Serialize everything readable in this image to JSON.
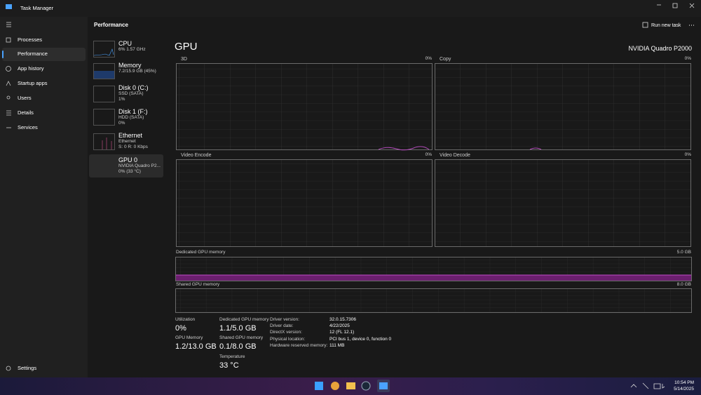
{
  "window": {
    "title": "Task Manager"
  },
  "header": {
    "title": "Performance",
    "action": "Run new task"
  },
  "nav": {
    "items": [
      "Processes",
      "Performance",
      "App history",
      "Startup apps",
      "Users",
      "Details",
      "Services"
    ],
    "settings": "Settings"
  },
  "devices": [
    {
      "name": "CPU",
      "details": [
        "6%  1.57 GHz"
      ]
    },
    {
      "name": "Memory",
      "details": [
        "7.2/15.9 GB (45%)"
      ]
    },
    {
      "name": "Disk 0 (C:)",
      "details": [
        "SSD (SATA)",
        "1%"
      ]
    },
    {
      "name": "Disk 1 (F:)",
      "details": [
        "HDD (SATA)",
        "0%"
      ]
    },
    {
      "name": "Ethernet",
      "details": [
        "Ethernet",
        "S: 0 R: 0 Kbps"
      ]
    },
    {
      "name": "GPU 0",
      "details": [
        "NVIDIA Quadro P2...",
        "0% (33 °C)"
      ]
    }
  ],
  "gpu": {
    "title": "GPU",
    "model": "NVIDIA Quadro P2000",
    "engines": [
      {
        "name": "3D",
        "value": "0%"
      },
      {
        "name": "Copy",
        "value": "0%"
      },
      {
        "name": "Video Encode",
        "value": "0%"
      },
      {
        "name": "Video Decode",
        "value": "0%"
      }
    ],
    "memory_graphs": [
      {
        "name": "Dedicated GPU memory",
        "max": "5.0 GB"
      },
      {
        "name": "Shared GPU memory",
        "max": "8.0 GB"
      }
    ],
    "stats": [
      {
        "label": "Utilization",
        "value": "0%"
      },
      {
        "label": "GPU Memory",
        "value": "1.2/13.0 GB"
      },
      {
        "label": "Dedicated GPU memory",
        "value": "1.1/5.0 GB"
      },
      {
        "label": "Shared GPU memory",
        "value": "0.1/8.0 GB"
      },
      {
        "label": "Temperature",
        "value": "33 °C"
      }
    ],
    "properties": [
      {
        "label": "Driver version:",
        "value": "32.0.15.7306"
      },
      {
        "label": "Driver date:",
        "value": "4/22/2025"
      },
      {
        "label": "DirectX version:",
        "value": "12 (FL 12.1)"
      },
      {
        "label": "Physical location:",
        "value": "PCI bus 1, device 0, function 0"
      },
      {
        "label": "Hardware reserved memory:",
        "value": "111 MB"
      }
    ]
  },
  "taskbar": {
    "time": "10:54 PM",
    "date": "5/14/2025"
  }
}
